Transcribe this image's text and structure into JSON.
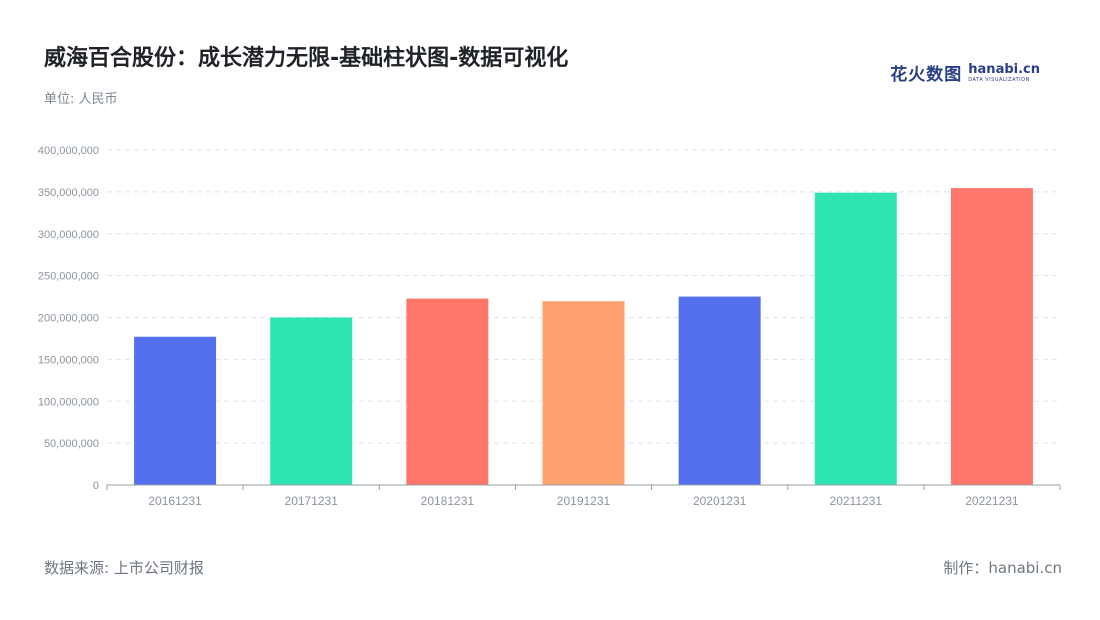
{
  "title": "威海百合股份：成长潜力无限-基础柱状图-数据可视化",
  "unit_label": "单位: 人民币",
  "brand": {
    "cn": "花火数图",
    "en": "hanabi.cn",
    "en_sub": "DATA VISUALIZATION",
    "color": "#2a3f88"
  },
  "footer": {
    "source": "数据来源: 上市公司财报",
    "credit": "制作：hanabi.cn"
  },
  "chart_data": {
    "type": "bar",
    "categories": [
      "20161231",
      "20171231",
      "20181231",
      "20191231",
      "20201231",
      "20211231",
      "20221231"
    ],
    "values": [
      177000000,
      200000000,
      222500000,
      219500000,
      225000000,
      349000000,
      354500000
    ],
    "colors": [
      "#5470ef",
      "#2ee5b1",
      "#ff766b",
      "#ffa26f",
      "#5470ef",
      "#2ee5b1",
      "#ff766b"
    ],
    "ylim": [
      0,
      400000000
    ],
    "yticks": [
      "0",
      "50,000,000",
      "100,000,000",
      "150,000,000",
      "200,000,000",
      "250,000,000",
      "300,000,000",
      "350,000,000",
      "400,000,000"
    ],
    "grid": true,
    "xlabel": "",
    "ylabel": ""
  }
}
